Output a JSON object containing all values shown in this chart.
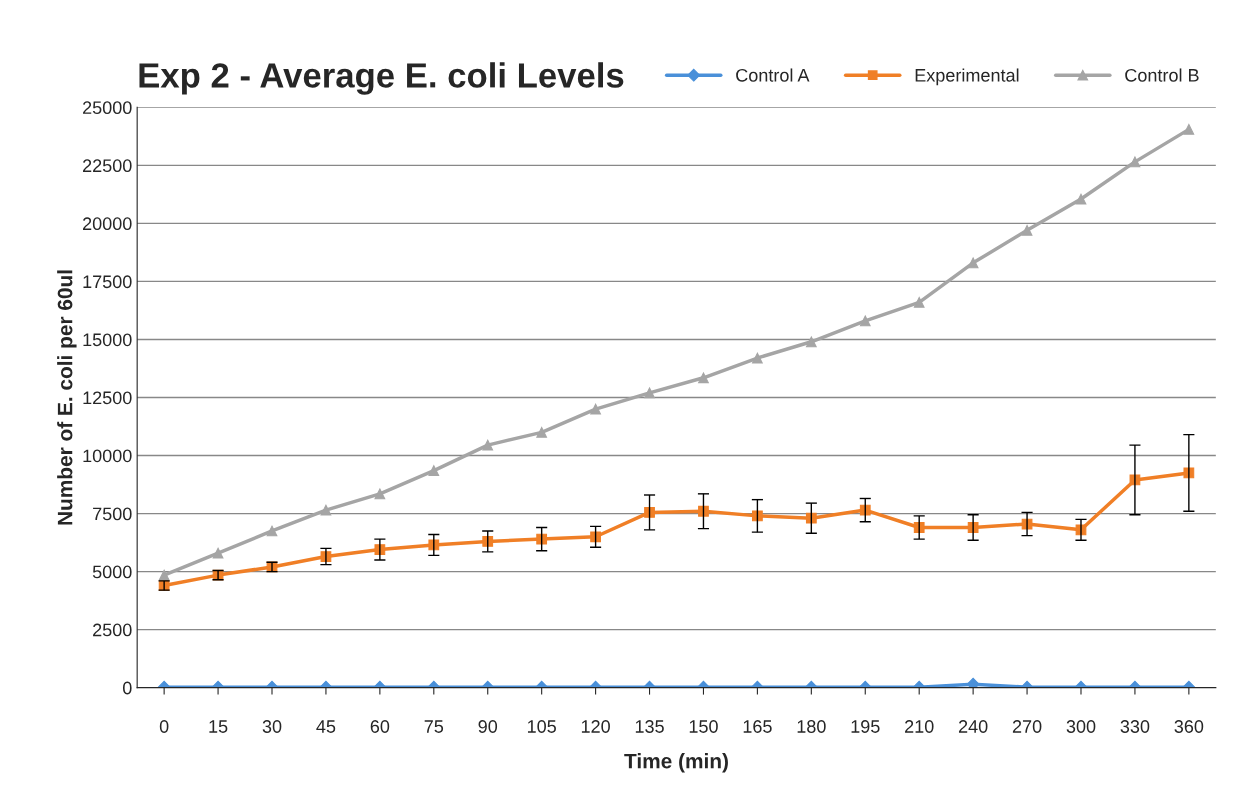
{
  "chart_data": {
    "type": "line",
    "title": "Exp 2 - Average E. coli Levels",
    "xlabel": "Time (min)",
    "ylabel": "Number of E. coli per 60ul",
    "categories": [
      "0",
      "15",
      "30",
      "45",
      "60",
      "75",
      "90",
      "105",
      "120",
      "135",
      "150",
      "165",
      "180",
      "195",
      "210",
      "240",
      "270",
      "300",
      "330",
      "360"
    ],
    "series": [
      {
        "name": "Control A",
        "color": "#4a90d9",
        "marker": "diamond",
        "values": [
          20,
          20,
          20,
          20,
          20,
          20,
          20,
          20,
          20,
          20,
          20,
          20,
          20,
          20,
          20,
          150,
          20,
          20,
          20,
          20
        ]
      },
      {
        "name": "Experimental",
        "color": "#f07f26",
        "marker": "square",
        "values": [
          4400,
          4850,
          5200,
          5650,
          5950,
          6150,
          6300,
          6400,
          6500,
          7550,
          7600,
          7400,
          7300,
          7650,
          6900,
          6900,
          7050,
          6800,
          8950,
          9250
        ],
        "errors": [
          200,
          200,
          200,
          350,
          450,
          450,
          450,
          500,
          450,
          750,
          750,
          700,
          650,
          500,
          500,
          550,
          500,
          450,
          1500,
          1650
        ]
      },
      {
        "name": "Control B",
        "color": "#a5a5a5",
        "marker": "triangle",
        "values": [
          4850,
          5800,
          6750,
          7650,
          8350,
          9350,
          10450,
          11000,
          12000,
          12700,
          13350,
          14200,
          14900,
          15800,
          16600,
          18300,
          19700,
          21050,
          22650,
          24050
        ]
      }
    ],
    "ylim": [
      0,
      25000
    ],
    "yticks": [
      0,
      2500,
      5000,
      7500,
      10000,
      12500,
      15000,
      17500,
      20000,
      22500,
      25000
    ],
    "grid": "y",
    "legend": "top right",
    "line_style": "solid"
  }
}
